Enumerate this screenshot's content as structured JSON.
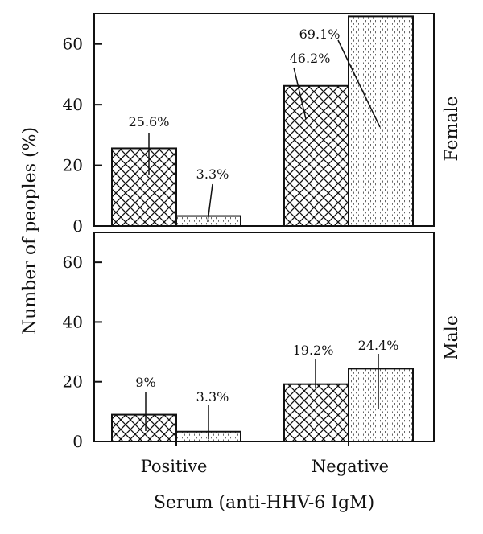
{
  "chart_data": {
    "type": "bar",
    "xlabel": "Serum (anti-HHV-6 IgM)",
    "ylabel": "Number of peoples (%)",
    "ylim": [
      0,
      70
    ],
    "yticks": [
      0,
      20,
      40,
      60
    ],
    "categories": [
      "Positive",
      "Negative"
    ],
    "grid": false,
    "panels": [
      {
        "label": "Female",
        "series": [
          {
            "pattern": "crosshatch",
            "values": [
              25.6,
              46.2
            ],
            "data_labels": [
              "25.6%",
              "46.2%"
            ]
          },
          {
            "pattern": "dotted",
            "values": [
              3.3,
              69.1
            ],
            "data_labels": [
              "3.3%",
              "69.1%"
            ]
          }
        ]
      },
      {
        "label": "Male",
        "series": [
          {
            "pattern": "crosshatch",
            "values": [
              9,
              19.2
            ],
            "data_labels": [
              "9%",
              "19.2%"
            ]
          },
          {
            "pattern": "dotted",
            "values": [
              3.3,
              24.4
            ],
            "data_labels": [
              "3.3%",
              "24.4%"
            ]
          }
        ]
      }
    ]
  }
}
